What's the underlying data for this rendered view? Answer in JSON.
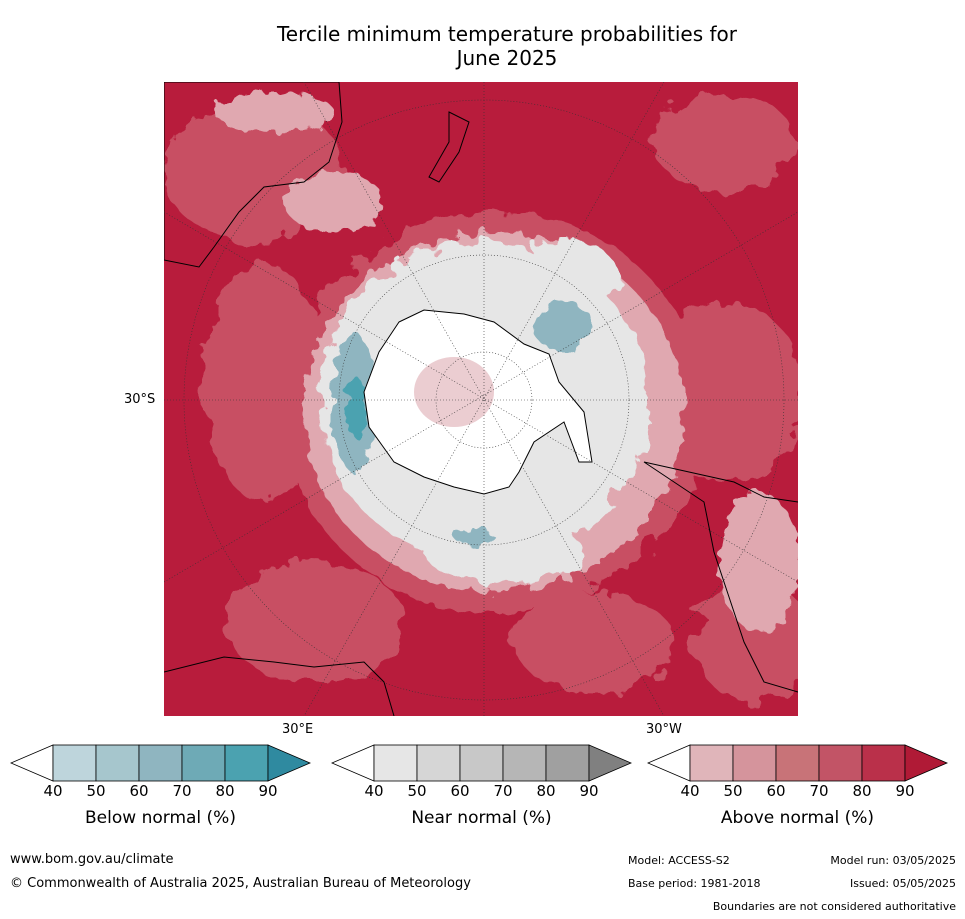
{
  "title": {
    "line1": "Tercile minimum temperature probabilities for",
    "line2": "June 2025"
  },
  "map": {
    "lat_labels": [
      "30°S"
    ],
    "lon_labels": [
      "30°E",
      "30°W"
    ],
    "colors": {
      "above_dark": "#b81c3c",
      "above_mid": "#c85064",
      "above_light": "#e0a8b0",
      "near": "#e6e6e6",
      "below": "#5aa6b4",
      "land": "#ffffff"
    }
  },
  "legends": [
    {
      "id": "below",
      "title": "Below normal (%)",
      "ticks": [
        "40",
        "50",
        "60",
        "70",
        "80",
        "90"
      ],
      "colors": [
        "#bed5dc",
        "#a6c6cd",
        "#8fb5c0",
        "#6eaab6",
        "#4ba2b0",
        "#2f8aa0"
      ]
    },
    {
      "id": "near",
      "title": "Near normal (%)",
      "ticks": [
        "40",
        "50",
        "60",
        "70",
        "80",
        "90"
      ],
      "colors": [
        "#e6e6e6",
        "#d6d6d6",
        "#c8c8c8",
        "#b6b6b6",
        "#a0a0a0",
        "#808080"
      ]
    },
    {
      "id": "above",
      "title": "Above normal (%)",
      "ticks": [
        "40",
        "50",
        "60",
        "70",
        "80",
        "90"
      ],
      "colors": [
        "#e0b5ba",
        "#d5949c",
        "#c87378",
        "#c25466",
        "#ba304a",
        "#b01a36"
      ]
    }
  ],
  "footer": {
    "url": "www.bom.gov.au/climate",
    "copyright": "© Commonwealth of Australia 2025, Australian Bureau of Meteorology",
    "model": "Model: ACCESS-S2",
    "base_period": "Base period: 1981-2018",
    "model_run": "Model run: 03/05/2025",
    "issued": "Issued: 05/05/2025",
    "disclaimer": "Boundaries are not considered authoritative"
  }
}
